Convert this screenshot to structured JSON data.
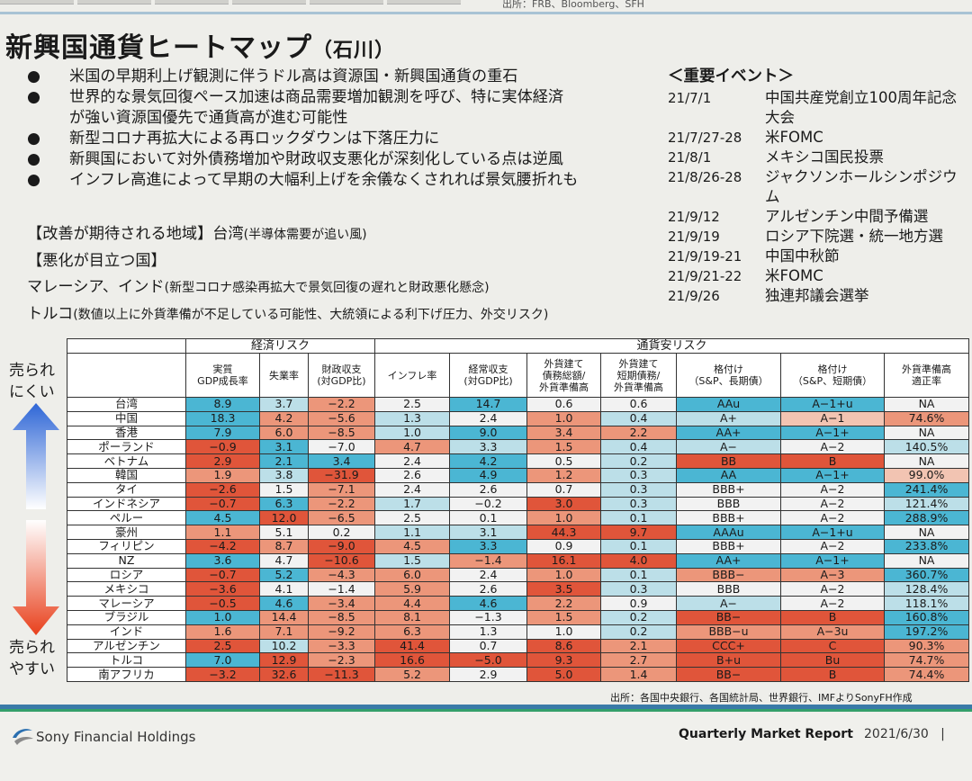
{
  "source_top": "出所：FRB、Bloomberg、SFH",
  "title": "新興国通貨ヒートマップ",
  "title_author": "（石川）",
  "bullets": [
    {
      "marker": "●",
      "lines": [
        "米国の早期利上げ観測に伴うドル高は資源国・新興国通貨の重石"
      ]
    },
    {
      "marker": "●",
      "lines": [
        "世界的な景気回復ペース加速は商品需要増加観測を呼び、特に実体経済",
        "が強い資源国優先で通貨高が進む可能性"
      ]
    },
    {
      "marker": "●",
      "lines": [
        "新型コロナ再拡大による再ロックダウンは下落圧力に"
      ]
    },
    {
      "marker": "●",
      "lines": [
        "新興国において対外債務増加や財政収支悪化が深刻化している点は逆風"
      ]
    },
    {
      "marker": "●",
      "lines": [
        "インフレ高進によって早期の大幅利上げを余儀なくされれば景気腰折れも"
      ]
    }
  ],
  "improve_label": "【改善が期待される地域】台湾",
  "improve_note": "(半導体需要が追い風)",
  "worse_label": "【悪化が目立つ国】",
  "worse1_label": "マレーシア、インド",
  "worse1_note": "(新型コロナ感染再拡大で景気回復の遅れと財政悪化懸念)",
  "worse2_label": "トルコ",
  "worse2_note": "(数値以上に外貨準備が不足している可能性、大統領による利下げ圧力、外交リスク)",
  "events_title": "＜重要イベント＞",
  "events": [
    {
      "date": "21/7/1",
      "text": "中国共産党創立100周年記念大会"
    },
    {
      "date": "21/7/27-28",
      "text": "米FOMC"
    },
    {
      "date": "21/8/1",
      "text": "メキシコ国民投票"
    },
    {
      "date": "21/8/26-28",
      "text": "ジャクソンホールシンポジウム"
    },
    {
      "date": "21/9/12",
      "text": "アルゼンチン中間予備選"
    },
    {
      "date": "21/9/19",
      "text": "ロシア下院選・統一地方選"
    },
    {
      "date": "21/9/19-21",
      "text": "中国中秋節"
    },
    {
      "date": "21/9/21-22",
      "text": "米FOMC"
    },
    {
      "date": "21/9/26",
      "text": "独連邦議会選挙"
    }
  ],
  "axis_top": [
    "売られ",
    "にくい"
  ],
  "axis_bottom": [
    "売られ",
    "やすい"
  ],
  "table": {
    "group_economic": "経済リスク",
    "group_currency": "通貨安リスク",
    "columns": [
      [
        "実質",
        "GDP成長率"
      ],
      [
        "失業率"
      ],
      [
        "財政収支",
        "(対GDP比)"
      ],
      [
        "インフレ率"
      ],
      [
        "経常収支",
        "(対GDP比)"
      ],
      [
        "外貨建て",
        "債務総額/",
        "外貨準備高"
      ],
      [
        "外貨建て",
        "短期債務/",
        "外貨準備高"
      ],
      [
        "格付け",
        "（S&P、長期債）"
      ],
      [
        "格付け",
        "（S&P、短期債）"
      ],
      [
        "外貨準備高",
        "適正率"
      ]
    ],
    "rows": [
      {
        "country": "台湾",
        "cells": [
          [
            "8.9",
            "b"
          ],
          [
            "3.7",
            "l"
          ],
          [
            "−2.2",
            "o"
          ],
          [
            "2.5",
            "w"
          ],
          [
            "14.7",
            "b"
          ],
          [
            "0.6",
            "w"
          ],
          [
            "0.6",
            "w"
          ],
          [
            "AAu",
            "b"
          ],
          [
            "A−1+u",
            "b"
          ],
          [
            "NA",
            "w"
          ]
        ]
      },
      {
        "country": "中国",
        "cells": [
          [
            "18.3",
            "b"
          ],
          [
            "4.2",
            "o"
          ],
          [
            "−5.6",
            "o"
          ],
          [
            "1.3",
            "l"
          ],
          [
            "2.4",
            "w"
          ],
          [
            "1.0",
            "o"
          ],
          [
            "0.4",
            "l"
          ],
          [
            "A+",
            "l"
          ],
          [
            "A−1",
            "p"
          ],
          [
            "74.6%",
            "o"
          ]
        ]
      },
      {
        "country": "香港",
        "cells": [
          [
            "7.9",
            "b"
          ],
          [
            "6.0",
            "o"
          ],
          [
            "−8.5",
            "o"
          ],
          [
            "1.0",
            "l"
          ],
          [
            "9.0",
            "b"
          ],
          [
            "3.4",
            "o"
          ],
          [
            "2.2",
            "o"
          ],
          [
            "AA+",
            "b"
          ],
          [
            "A−1+",
            "b"
          ],
          [
            "NA",
            "w"
          ]
        ]
      },
      {
        "country": "ポーランド",
        "cells": [
          [
            "−0.9",
            "r"
          ],
          [
            "3.1",
            "b"
          ],
          [
            "−7.0",
            "w"
          ],
          [
            "4.7",
            "o"
          ],
          [
            "3.3",
            "l"
          ],
          [
            "1.5",
            "o"
          ],
          [
            "0.4",
            "l"
          ],
          [
            "A−",
            "l"
          ],
          [
            "A−2",
            "w"
          ],
          [
            "140.5%",
            "l"
          ]
        ]
      },
      {
        "country": "ベトナム",
        "cells": [
          [
            "2.9",
            "r"
          ],
          [
            "2.1",
            "b"
          ],
          [
            "3.4",
            "b"
          ],
          [
            "2.4",
            "w"
          ],
          [
            "4.2",
            "b"
          ],
          [
            "0.5",
            "w"
          ],
          [
            "0.2",
            "l"
          ],
          [
            "BB",
            "r"
          ],
          [
            "B",
            "r"
          ],
          [
            "NA",
            "w"
          ]
        ]
      },
      {
        "country": "韓国",
        "cells": [
          [
            "1.9",
            "o"
          ],
          [
            "3.8",
            "l"
          ],
          [
            "−31.9",
            "r"
          ],
          [
            "2.6",
            "w"
          ],
          [
            "4.9",
            "b"
          ],
          [
            "1.2",
            "o"
          ],
          [
            "0.3",
            "l"
          ],
          [
            "AA",
            "b"
          ],
          [
            "A−1+",
            "b"
          ],
          [
            "99.0%",
            "p"
          ]
        ]
      },
      {
        "country": "タイ",
        "cells": [
          [
            "−2.6",
            "r"
          ],
          [
            "1.5",
            "w"
          ],
          [
            "−7.1",
            "o"
          ],
          [
            "2.4",
            "w"
          ],
          [
            "2.6",
            "w"
          ],
          [
            "0.7",
            "w"
          ],
          [
            "0.3",
            "l"
          ],
          [
            "BBB+",
            "w"
          ],
          [
            "A−2",
            "w"
          ],
          [
            "241.4%",
            "b"
          ]
        ]
      },
      {
        "country": "インドネシア",
        "cells": [
          [
            "−0.7",
            "r"
          ],
          [
            "6.3",
            "b"
          ],
          [
            "−2.2",
            "o"
          ],
          [
            "1.7",
            "l"
          ],
          [
            "−0.2",
            "w"
          ],
          [
            "3.0",
            "r"
          ],
          [
            "0.3",
            "l"
          ],
          [
            "BBB",
            "w"
          ],
          [
            "A−2",
            "w"
          ],
          [
            "121.4%",
            "l"
          ]
        ]
      },
      {
        "country": "ペルー",
        "cells": [
          [
            "4.5",
            "b"
          ],
          [
            "12.0",
            "r"
          ],
          [
            "−6.5",
            "o"
          ],
          [
            "2.5",
            "w"
          ],
          [
            "0.1",
            "w"
          ],
          [
            "1.0",
            "o"
          ],
          [
            "0.1",
            "l"
          ],
          [
            "BBB+",
            "w"
          ],
          [
            "A−2",
            "w"
          ],
          [
            "288.9%",
            "b"
          ]
        ]
      },
      {
        "country": "豪州",
        "cells": [
          [
            "1.1",
            "o"
          ],
          [
            "5.1",
            "w"
          ],
          [
            "0.2",
            "w"
          ],
          [
            "1.1",
            "l"
          ],
          [
            "3.1",
            "l"
          ],
          [
            "44.3",
            "r"
          ],
          [
            "9.7",
            "r"
          ],
          [
            "AAAu",
            "b"
          ],
          [
            "A−1+u",
            "b"
          ],
          [
            "NA",
            "w"
          ]
        ]
      },
      {
        "country": "フィリピン",
        "cells": [
          [
            "−4.2",
            "r"
          ],
          [
            "8.7",
            "o"
          ],
          [
            "−9.0",
            "r"
          ],
          [
            "4.5",
            "o"
          ],
          [
            "3.3",
            "b"
          ],
          [
            "0.9",
            "w"
          ],
          [
            "0.1",
            "l"
          ],
          [
            "BBB+",
            "w"
          ],
          [
            "A−2",
            "w"
          ],
          [
            "233.8%",
            "b"
          ]
        ]
      },
      {
        "country": "NZ",
        "cells": [
          [
            "3.6",
            "b"
          ],
          [
            "4.7",
            "w"
          ],
          [
            "−10.6",
            "r"
          ],
          [
            "1.5",
            "l"
          ],
          [
            "−1.4",
            "o"
          ],
          [
            "16.1",
            "r"
          ],
          [
            "4.0",
            "r"
          ],
          [
            "AA+",
            "b"
          ],
          [
            "A−1+",
            "b"
          ],
          [
            "NA",
            "w"
          ]
        ]
      },
      {
        "country": "ロシア",
        "cells": [
          [
            "−0.7",
            "r"
          ],
          [
            "5.2",
            "b"
          ],
          [
            "−4.3",
            "o"
          ],
          [
            "6.0",
            "o"
          ],
          [
            "2.4",
            "w"
          ],
          [
            "1.0",
            "o"
          ],
          [
            "0.1",
            "l"
          ],
          [
            "BBB−",
            "o"
          ],
          [
            "A−3",
            "o"
          ],
          [
            "360.7%",
            "b"
          ]
        ]
      },
      {
        "country": "メキシコ",
        "cells": [
          [
            "−3.6",
            "r"
          ],
          [
            "4.1",
            "w"
          ],
          [
            "−1.4",
            "w"
          ],
          [
            "5.9",
            "o"
          ],
          [
            "2.6",
            "w"
          ],
          [
            "3.5",
            "r"
          ],
          [
            "0.3",
            "l"
          ],
          [
            "BBB",
            "w"
          ],
          [
            "A−2",
            "w"
          ],
          [
            "128.4%",
            "l"
          ]
        ]
      },
      {
        "country": "マレーシア",
        "cells": [
          [
            "−0.5",
            "r"
          ],
          [
            "4.6",
            "b"
          ],
          [
            "−3.4",
            "o"
          ],
          [
            "4.4",
            "o"
          ],
          [
            "4.6",
            "b"
          ],
          [
            "2.2",
            "o"
          ],
          [
            "0.9",
            "w"
          ],
          [
            "A−",
            "l"
          ],
          [
            "A−2",
            "w"
          ],
          [
            "118.1%",
            "l"
          ]
        ]
      },
      {
        "country": "ブラジル",
        "cells": [
          [
            "1.0",
            "b"
          ],
          [
            "14.4",
            "o"
          ],
          [
            "−8.5",
            "o"
          ],
          [
            "8.1",
            "o"
          ],
          [
            "−1.3",
            "w"
          ],
          [
            "1.5",
            "o"
          ],
          [
            "0.2",
            "l"
          ],
          [
            "BB−",
            "r"
          ],
          [
            "B",
            "r"
          ],
          [
            "160.8%",
            "b"
          ]
        ]
      },
      {
        "country": "インド",
        "cells": [
          [
            "1.6",
            "o"
          ],
          [
            "7.1",
            "o"
          ],
          [
            "−9.2",
            "o"
          ],
          [
            "6.3",
            "o"
          ],
          [
            "1.3",
            "w"
          ],
          [
            "1.0",
            "w"
          ],
          [
            "0.2",
            "l"
          ],
          [
            "BBB−u",
            "o"
          ],
          [
            "A−3u",
            "o"
          ],
          [
            "197.2%",
            "b"
          ]
        ]
      },
      {
        "country": "アルゼンチン",
        "cells": [
          [
            "2.5",
            "r"
          ],
          [
            "10.2",
            "l"
          ],
          [
            "−3.3",
            "o"
          ],
          [
            "41.4",
            "r"
          ],
          [
            "0.7",
            "w"
          ],
          [
            "8.6",
            "r"
          ],
          [
            "2.1",
            "o"
          ],
          [
            "CCC+",
            "r"
          ],
          [
            "C",
            "r"
          ],
          [
            "90.3%",
            "o"
          ]
        ]
      },
      {
        "country": "トルコ",
        "cells": [
          [
            "7.0",
            "b"
          ],
          [
            "12.9",
            "r"
          ],
          [
            "−2.3",
            "o"
          ],
          [
            "16.6",
            "r"
          ],
          [
            "−5.0",
            "r"
          ],
          [
            "9.3",
            "r"
          ],
          [
            "2.7",
            "o"
          ],
          [
            "B+u",
            "r"
          ],
          [
            "Bu",
            "r"
          ],
          [
            "74.7%",
            "o"
          ]
        ]
      },
      {
        "country": "南アフリカ",
        "cells": [
          [
            "−3.2",
            "r"
          ],
          [
            "32.6",
            "r"
          ],
          [
            "−11.3",
            "r"
          ],
          [
            "5.2",
            "o"
          ],
          [
            "2.9",
            "w"
          ],
          [
            "5.0",
            "r"
          ],
          [
            "1.4",
            "o"
          ],
          [
            "BB−",
            "r"
          ],
          [
            "B",
            "r"
          ],
          [
            "74.4%",
            "o"
          ]
        ]
      }
    ]
  },
  "colors": {
    "b": "#4bb6d3",
    "l": "#bcdfe8",
    "w": "#f2f2f2",
    "p": "#f2c4b2",
    "o": "#ec967a",
    "r": "#e0553a",
    "arrow_up": "#3d6fd8",
    "arrow_down": "#e84820"
  },
  "table_source": "出所：各国中央銀行、各国統計局、世界銀行、IMFよりSonyFH作成",
  "brand": "Sony Financial Holdings",
  "report_name": "Quarterly Market Report",
  "report_date": "2021/6/30",
  "page_sep": "|"
}
